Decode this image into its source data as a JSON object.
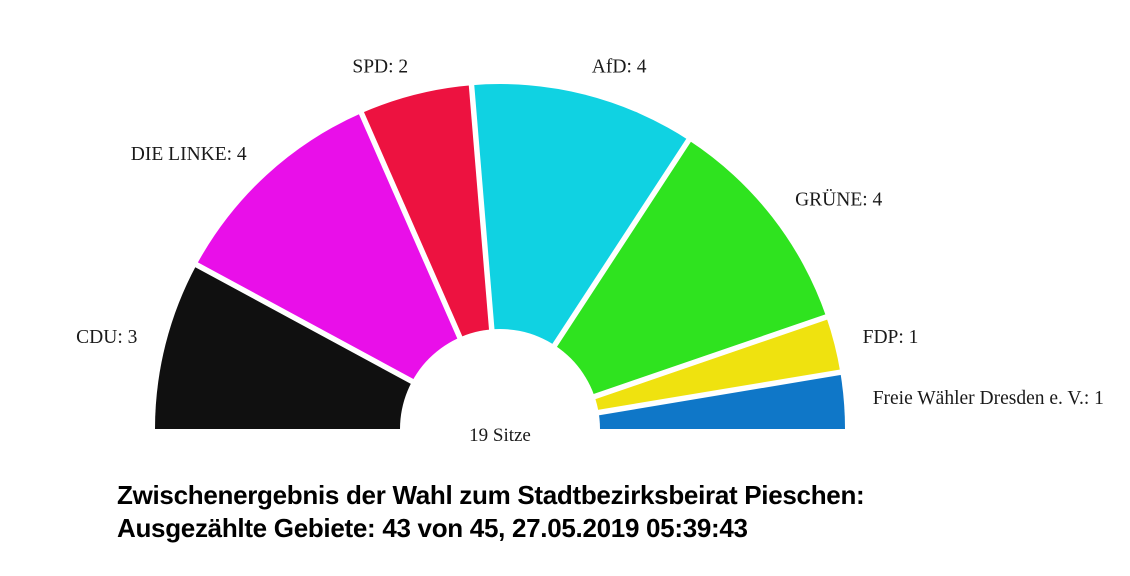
{
  "title": {
    "line1": "Zwischenergebnis der Wahl zum Stadtbezirksbeirat Pieschen:",
    "line2": "Ausgezählte Gebiete: 43 von 45, 27.05.2019 05:39:43"
  },
  "chart_data": {
    "type": "pie",
    "variant": "parliament-half-donut",
    "title": "Zwischenergebnis der Wahl zum Stadtbezirksbeirat Pieschen: Ausgezählte Gebiete: 43 von 45, 27.05.2019 05:39:43",
    "total_seats": 19,
    "center_label": "19 Sitze",
    "categories": [
      "CDU",
      "DIE LINKE",
      "SPD",
      "AfD",
      "GRÜNE",
      "FDP",
      "Freie Wähler Dresden e. V."
    ],
    "values": [
      3,
      4,
      2,
      4,
      4,
      1,
      1
    ],
    "labels": [
      "CDU: 3",
      "DIE LINKE: 4",
      "SPD: 2",
      "AfD: 4",
      "GRÜNE: 4",
      "FDP: 1",
      "Freie Wähler Dresden e. V.: 1"
    ],
    "colors": [
      "#101010",
      "#e90fe9",
      "#ed1240",
      "#10d2e2",
      "#2fe31f",
      "#efe20f",
      "#0f77c8"
    ],
    "slugs": [
      "cdu",
      "die-linke",
      "spd",
      "afd",
      "gruene",
      "fdp",
      "freie-waehler-dresden"
    ],
    "arc_degrees": 180,
    "direction": "left-to-right",
    "grid": false,
    "legend_position": "labels-around-arc",
    "label_color": "#1a1a1a",
    "separator_color": "#ffffff",
    "background_color": "#ffffff"
  }
}
